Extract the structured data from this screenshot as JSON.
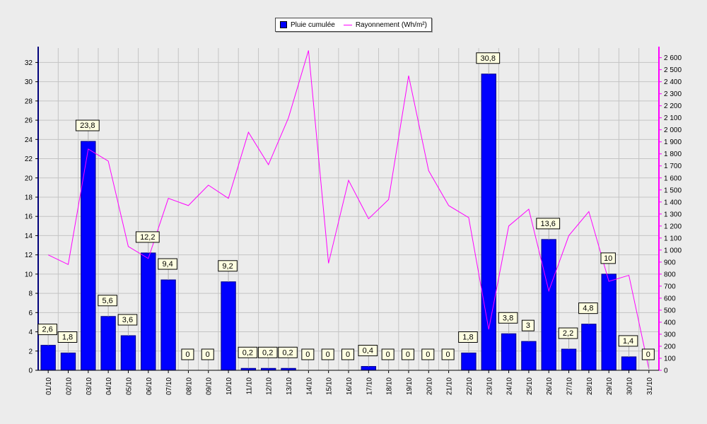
{
  "chart_data": {
    "type": "bar",
    "categories": [
      "01/10",
      "02/10",
      "03/10",
      "04/10",
      "05/10",
      "06/10",
      "07/10",
      "08/10",
      "09/10",
      "10/10",
      "11/10",
      "12/10",
      "13/10",
      "14/10",
      "15/10",
      "16/10",
      "17/10",
      "18/10",
      "19/10",
      "20/10",
      "21/10",
      "22/10",
      "23/10",
      "24/10",
      "25/10",
      "26/10",
      "27/10",
      "28/10",
      "29/10",
      "30/10",
      "31/10"
    ],
    "series": [
      {
        "name": "Pluie cumulée",
        "type": "bar",
        "axis": "left",
        "color": "#0000ff",
        "values": [
          2.6,
          1.8,
          23.8,
          5.6,
          3.6,
          12.2,
          9.4,
          0,
          0,
          9.2,
          0.2,
          0.2,
          0.2,
          0,
          0,
          0,
          0.4,
          0,
          0,
          0,
          0,
          1.8,
          30.8,
          3.8,
          3,
          13.6,
          2.2,
          4.8,
          10,
          1.4,
          0
        ],
        "labels": [
          "2,6",
          "1,8",
          "23,8",
          "5,6",
          "3,6",
          "12,2",
          "9,4",
          "0",
          "0",
          "9,2",
          "0,2",
          "0,2",
          "0,2",
          "0",
          "0",
          "0",
          "0,4",
          "0",
          "0",
          "0",
          "0",
          "1,8",
          "30,8",
          "3,8",
          "3",
          "13,6",
          "2,2",
          "4,8",
          "10",
          "1,4",
          "0"
        ]
      },
      {
        "name": "Rayonnement (Wh/m²)",
        "type": "line",
        "axis": "right",
        "color": "#ff00ff",
        "values": [
          960,
          880,
          1840,
          1740,
          1030,
          930,
          1430,
          1370,
          1540,
          1430,
          1980,
          1710,
          2100,
          2660,
          890,
          1580,
          1260,
          1420,
          2450,
          1660,
          1370,
          1270,
          340,
          1200,
          1340,
          660,
          1120,
          1320,
          740,
          790,
          10
        ]
      }
    ],
    "y_left": {
      "min": 0,
      "max": 33.5,
      "ticks": [
        0,
        2,
        4,
        6,
        8,
        10,
        12,
        14,
        16,
        18,
        20,
        22,
        24,
        26,
        28,
        30,
        32
      ]
    },
    "y_right": {
      "min": 0,
      "max": 2680,
      "ticks": [
        0,
        100,
        200,
        300,
        400,
        500,
        600,
        700,
        800,
        900,
        1000,
        1100,
        1200,
        1300,
        1400,
        1500,
        1600,
        1700,
        1800,
        1900,
        2000,
        2100,
        2200,
        2300,
        2400,
        2500,
        2600
      ]
    },
    "grid": true,
    "legend_position": "top-center",
    "colors": {
      "bar": "#0000ff",
      "line": "#ff00ff",
      "left_axis": "#00007a",
      "right_axis": "#ff00ff",
      "label_box": "#ffffe1"
    }
  }
}
